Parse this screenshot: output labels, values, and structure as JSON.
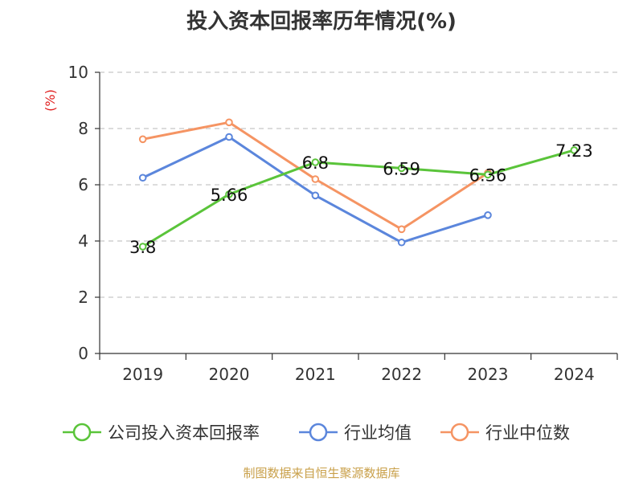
{
  "chart_data": {
    "type": "line",
    "title": "投入资本回报率历年情况(%)",
    "ylabel": "(%)",
    "xlabel": "",
    "ylim": [
      0,
      10
    ],
    "yticks": [
      0,
      2,
      4,
      6,
      8,
      10
    ],
    "categories": [
      "2019",
      "2020",
      "2021",
      "2022",
      "2023",
      "2024"
    ],
    "series": [
      {
        "name": "公司投入资本回报率",
        "color": "#5ac43a",
        "values": [
          3.8,
          5.66,
          6.8,
          6.59,
          6.36,
          7.23
        ],
        "labels": [
          "3.8",
          "5.66",
          "6.8",
          "6.59",
          "6.36",
          "7.23"
        ]
      },
      {
        "name": "行业均值",
        "color": "#5b86dc",
        "values": [
          6.25,
          7.7,
          5.62,
          3.95,
          4.92,
          null
        ]
      },
      {
        "name": "行业中位数",
        "color": "#f59463",
        "values": [
          7.62,
          8.22,
          6.2,
          4.42,
          6.42,
          null
        ]
      }
    ],
    "grid": true,
    "legend_position": "bottom"
  },
  "source_text": "制图数据来自恒生聚源数据库"
}
